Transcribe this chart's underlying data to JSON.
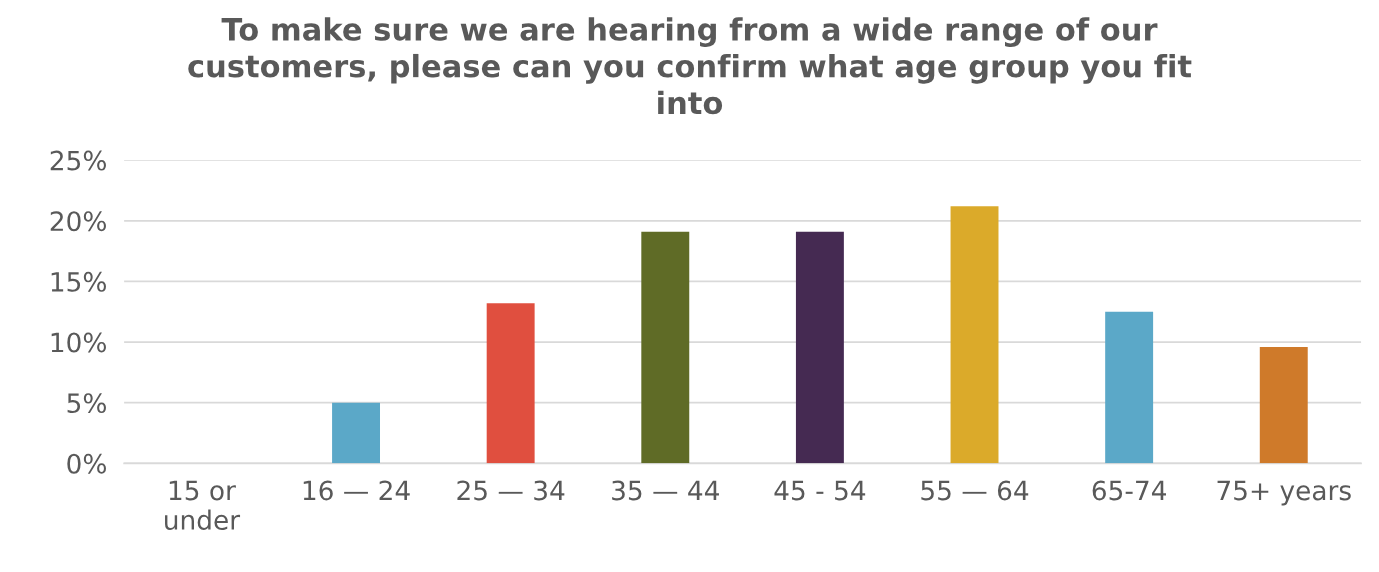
{
  "chart_data": {
    "type": "bar",
    "title": "To make sure we are hearing from a wide range of our customers, please can you confirm what age group you fit into",
    "categories": [
      "15 or under",
      "16 — 24",
      "25 — 34",
      "35 — 44",
      "45 - 54",
      "55 — 64",
      "65-74",
      "75+ years"
    ],
    "values": [
      0,
      5,
      13.2,
      19.1,
      19.1,
      21.2,
      12.5,
      9.6
    ],
    "colors": [
      "#5ba8c8",
      "#5ba8c8",
      "#e04f3f",
      "#5f6b26",
      "#452a52",
      "#dbaa2a",
      "#5ba8c8",
      "#cf7a2a"
    ],
    "ylim": [
      0,
      25
    ],
    "yticks": [
      {
        "value": 0,
        "label": "0%"
      },
      {
        "value": 5,
        "label": "5%"
      },
      {
        "value": 10,
        "label": "10%"
      },
      {
        "value": 15,
        "label": "15%"
      },
      {
        "value": 20,
        "label": "20%"
      },
      {
        "value": 25,
        "label": "25%"
      }
    ],
    "grid": "y"
  }
}
